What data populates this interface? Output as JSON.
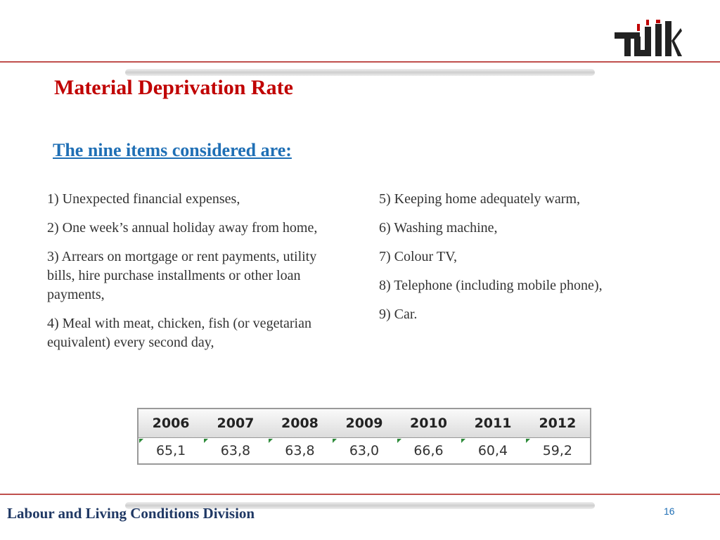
{
  "header": {
    "title": "Material Deprivation Rate",
    "subtitle": "The nine items considered are:"
  },
  "items": {
    "left": [
      "1) Unexpected financial expenses,",
      "2) One week’s annual holiday away from home,",
      "3) Arrears on mortgage or rent payments, utility bills, hire purchase installments or other loan payments,",
      "4) Meal with meat, chicken, fish (or vegetarian equivalent) every second day,"
    ],
    "right": [
      "5) Keeping home adequately warm,",
      "6) Washing machine,",
      "7) Colour TV,",
      "8) Telephone (including mobile phone),",
      "9) Car."
    ]
  },
  "table": {
    "header": [
      "2006",
      "2007",
      "2008",
      "2009",
      "2010",
      "2011",
      "2012"
    ],
    "rows": [
      [
        "65,1",
        "63,8",
        "63,8",
        "63,0",
        "66,6",
        "60,4",
        "59,2"
      ]
    ]
  },
  "footer": {
    "division": "Labour and Living Conditions Division",
    "page": "16"
  }
}
